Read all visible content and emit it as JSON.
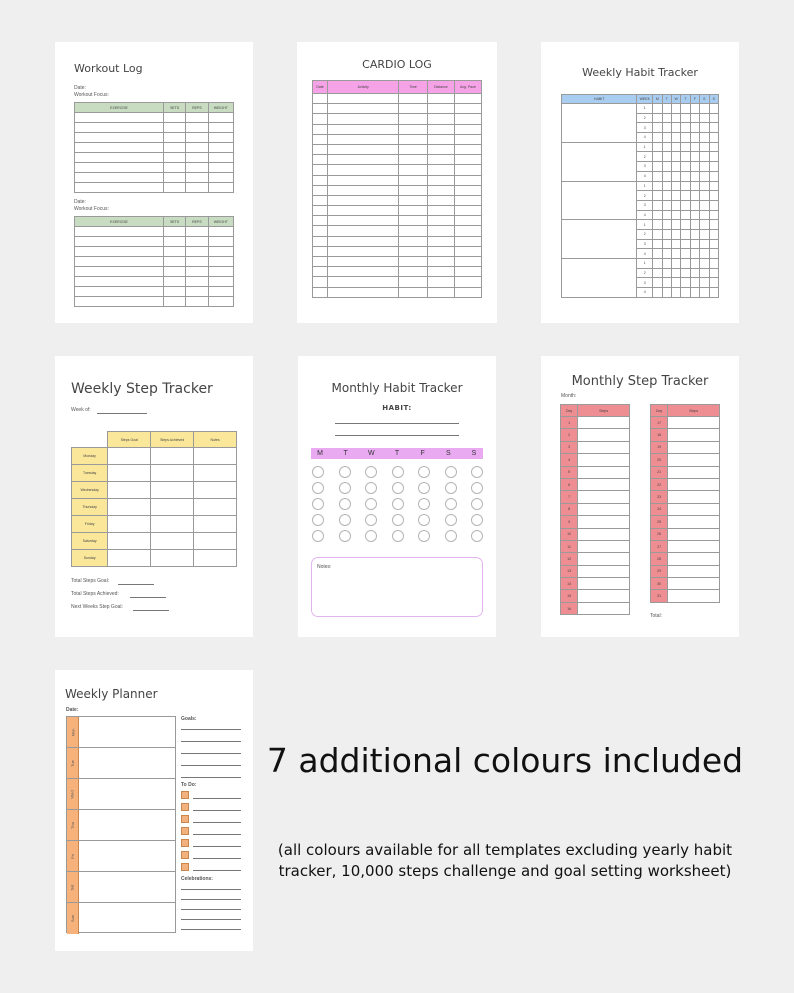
{
  "colors": {
    "workout_header": "#c7dcc0",
    "cardio_header": "#f5a3e6",
    "habit_header": "#a9cdf0",
    "step_header": "#fbe79a",
    "monthly_habit_header": "#e9aaf2",
    "monthly_step_header": "#ee8d92",
    "planner_accent": "#f7b27c",
    "background": "#efefef"
  },
  "workout_log": {
    "title": "Workout Log",
    "date_label": "Date:",
    "focus_label": "Workout Focus:",
    "columns": [
      "EXERCISE",
      "SETS",
      "REPS",
      "WEIGHT"
    ]
  },
  "cardio_log": {
    "title": "CARDIO LOG",
    "columns": [
      "Date",
      "Activity",
      "Time",
      "Distance",
      "Avg. Pace"
    ]
  },
  "weekly_habit_tracker": {
    "title": "Weekly Habit Tracker",
    "columns": [
      "HABIT",
      "WEEK",
      "M",
      "T",
      "W",
      "T",
      "F",
      "S",
      "S"
    ],
    "week_numbers": [
      "1",
      "2",
      "3",
      "4"
    ]
  },
  "weekly_step_tracker": {
    "title": "Weekly Step Tracker",
    "week_of_label": "Week of:",
    "columns": [
      "Steps Goal",
      "Steps Achieved",
      "Notes"
    ],
    "days": [
      "Monday",
      "Tuesday",
      "Wednesday",
      "Thursday",
      "Friday",
      "Saturday",
      "Sunday"
    ],
    "total_goal_label": "Total Steps Goal:",
    "total_achieved_label": "Total Steps Achieved:",
    "next_week_label": "Next Weeks Step Goal:"
  },
  "monthly_habit_tracker": {
    "title": "Monthly Habit Tracker",
    "habit_label": "HABIT:",
    "days": [
      "M",
      "T",
      "W",
      "T",
      "F",
      "S",
      "S"
    ],
    "notes_label": "Notes:"
  },
  "monthly_step_tracker": {
    "title": "Monthly Step Tracker",
    "month_label": "Month:",
    "col_day": "Day",
    "col_steps": "Steps",
    "left_days": [
      "1",
      "2",
      "3",
      "4",
      "5",
      "6",
      "7",
      "8",
      "9",
      "10",
      "11",
      "12",
      "13",
      "14",
      "15",
      "16"
    ],
    "right_days": [
      "17",
      "18",
      "19",
      "20",
      "21",
      "22",
      "23",
      "24",
      "25",
      "26",
      "27",
      "28",
      "29",
      "30",
      "31"
    ],
    "total_label": "Total:"
  },
  "weekly_planner": {
    "title": "Weekly Planner",
    "date_label": "Date:",
    "days": [
      "Mon",
      "Tue",
      "Wed",
      "Thu",
      "Fri",
      "Sat",
      "Sun"
    ],
    "goals_label": "Goals:",
    "todo_label": "To Do:",
    "celebrations_label": "Celebrations:"
  },
  "headline": "7 additional colours included",
  "subtext_line1": "(all colours available for all templates excluding yearly habit",
  "subtext_line2": "tracker, 10,000 steps challenge and goal setting worksheet)"
}
